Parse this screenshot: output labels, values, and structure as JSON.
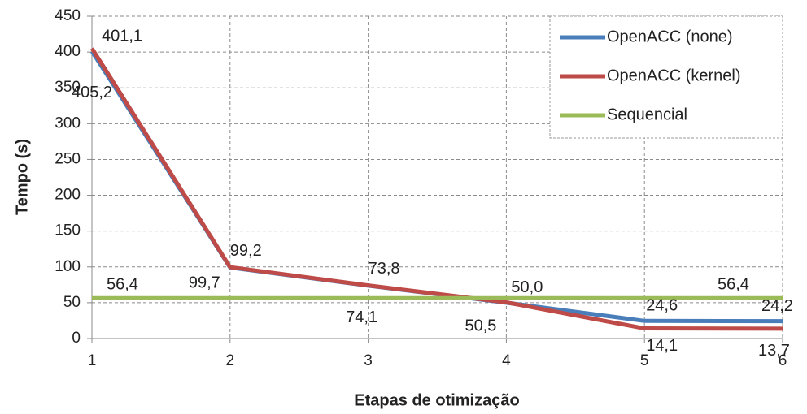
{
  "chart_data": {
    "type": "line",
    "x_label": "Etapas de otimização",
    "y_label": "Tempo (s)",
    "x": [
      1,
      2,
      3,
      4,
      5,
      6
    ],
    "xlim": [
      1,
      6
    ],
    "xticks": [
      1,
      2,
      3,
      4,
      5,
      6
    ],
    "ylim": [
      0,
      450
    ],
    "yticks": [
      0,
      50,
      100,
      150,
      200,
      250,
      300,
      350,
      400,
      450
    ],
    "grid": true,
    "legend": "upper right",
    "series": [
      {
        "name": "OpenACC (none)",
        "color": "#4a7ebb",
        "label_color": "#2e7bc4",
        "values": [
          401.1,
          99.2,
          73.8,
          50.0,
          24.6,
          24.2
        ],
        "value_labels": [
          "401,1",
          "99,2",
          "73,8",
          "50,0",
          "24,6",
          "24,2"
        ]
      },
      {
        "name": "OpenACC (kernel)",
        "color": "#be4b48",
        "label_color": "#c0302a",
        "values": [
          405.2,
          99.7,
          74.1,
          50.5,
          14.1,
          13.7
        ],
        "value_labels": [
          "405,2",
          "99,7",
          "74,1",
          "50,5",
          "14,1",
          "13,7"
        ]
      },
      {
        "name": "Sequencial",
        "color": "#9bbb59",
        "label_color": "#9bbb59",
        "values": [
          56.4,
          56.4,
          56.4,
          56.4,
          56.4,
          56.4
        ],
        "value_labels": [
          "56,4",
          null,
          null,
          null,
          null,
          "56,4"
        ]
      }
    ]
  }
}
